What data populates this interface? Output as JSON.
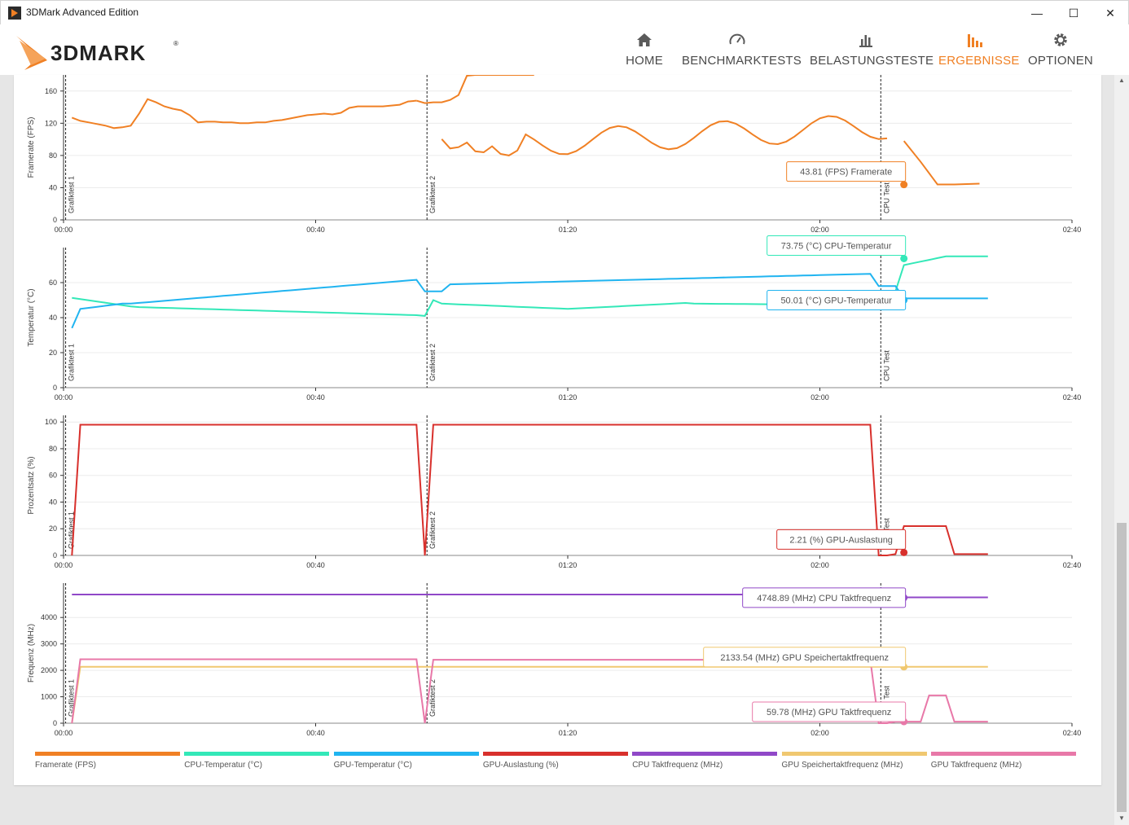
{
  "window": {
    "title": "3DMark Advanced Edition",
    "controls": [
      "—",
      "☐",
      "✕"
    ]
  },
  "brand": {
    "logo_text": "3DMARK",
    "registered": "®"
  },
  "nav": [
    {
      "label": "HOME",
      "icon": "home-icon",
      "active": false
    },
    {
      "label": "BENCHMARKTESTS",
      "icon": "gauge-icon",
      "active": false
    },
    {
      "label": "BELASTUNGSTESTE",
      "icon": "bars-icon",
      "active": false
    },
    {
      "label": "ERGEBNISSE",
      "icon": "results-icon",
      "active": true
    },
    {
      "label": "OPTIONEN",
      "icon": "gear-icon",
      "active": false
    }
  ],
  "colors": {
    "accent": "#f08024",
    "framerate": "#f08024",
    "cpu_temp": "#33e8b8",
    "gpu_temp": "#20b4f0",
    "gpu_load": "#d8302c",
    "cpu_clock": "#9048c8",
    "gpu_mem_clock": "#f0c870",
    "gpu_clock": "#e878a8"
  },
  "markers": {
    "x": [
      0.5,
      86.5,
      194.5
    ],
    "labels": [
      "Grafiktest 1",
      "Grafiktest 2",
      "CPU Test"
    ]
  },
  "x_ticks": [
    "00:00",
    "00:40",
    "01:20",
    "02:00",
    "02:40"
  ],
  "chart_data": [
    {
      "type": "line",
      "id": "framerate",
      "ylabel": "Framerate (FPS)",
      "xlim": [
        0,
        240
      ],
      "ylim": [
        0,
        180
      ],
      "yticks": [
        0,
        40,
        80,
        120,
        160
      ],
      "series": [
        {
          "name": "Framerate (FPS)",
          "color": "#f08024",
          "segments": [
            {
              "x": [
                2,
                4,
                6,
                8,
                10,
                12,
                14,
                16,
                18,
                20,
                22,
                24,
                26,
                28,
                30,
                32,
                34,
                36,
                38,
                40,
                42,
                44,
                46,
                48,
                50,
                52,
                54,
                56,
                58,
                60,
                62,
                64,
                66,
                68,
                70,
                72,
                74,
                76,
                78,
                80,
                82,
                84
              ],
              "y": [
                127,
                123,
                121,
                119,
                117,
                114,
                115,
                117,
                132,
                150,
                146,
                141,
                138,
                136,
                130,
                121,
                122,
                122,
                121,
                121,
                120,
                120,
                121,
                121,
                123,
                124,
                126,
                128,
                130,
                131,
                132,
                131,
                133,
                139,
                141,
                141,
                141,
                141,
                142,
                143,
                147,
                148
              ]
            },
            {
              "x": [
                84,
                86,
                88,
                90,
                92,
                94,
                96,
                98,
                100,
                102,
                104,
                106,
                108,
                110,
                112
              ],
              "y": [
                148,
                145,
                146,
                146,
                149,
                155,
                179,
                180,
                180,
                180,
                180,
                180,
                180,
                180,
                180
              ]
            }
          ]
        }
      ],
      "callouts": [
        {
          "text": "43.81 (FPS) Framerate",
          "value": 43.81,
          "color": "#f08024"
        }
      ]
    },
    {
      "type": "line",
      "id": "temperature",
      "ylabel": "Temperatur (°C)",
      "xlim": [
        0,
        240
      ],
      "ylim": [
        0,
        80
      ],
      "yticks": [
        0,
        20,
        40,
        60
      ],
      "series": [
        {
          "name": "CPU-Temperatur (°C)",
          "color": "#33e8b8"
        },
        {
          "name": "GPU-Temperatur (°C)",
          "color": "#20b4f0"
        }
      ],
      "callouts": [
        {
          "text": "73.75 (°C) CPU-Temperatur",
          "value": 73.75,
          "color": "#33e8b8"
        },
        {
          "text": "50.01 (°C) GPU-Temperatur",
          "value": 50.01,
          "color": "#20b4f0"
        }
      ]
    },
    {
      "type": "line",
      "id": "percentage",
      "ylabel": "Prozentsatz (%)",
      "xlim": [
        0,
        240
      ],
      "ylim": [
        0,
        105
      ],
      "yticks": [
        0,
        20,
        40,
        60,
        80,
        100
      ],
      "series": [
        {
          "name": "GPU-Auslastung (%)",
          "color": "#d8302c"
        }
      ],
      "callouts": [
        {
          "text": "2.21 (%) GPU-Auslastung",
          "value": 2.21,
          "color": "#d8302c"
        }
      ]
    },
    {
      "type": "line",
      "id": "frequency",
      "ylabel": "Frequenz (MHz)",
      "xlim": [
        0,
        240
      ],
      "ylim": [
        0,
        5300
      ],
      "yticks": [
        0,
        1000,
        2000,
        3000,
        4000
      ],
      "series": [
        {
          "name": "CPU Taktfrequenz (MHz)",
          "color": "#9048c8"
        },
        {
          "name": "GPU Speichertaktfrequenz (MHz)",
          "color": "#f0c870"
        },
        {
          "name": "GPU Taktfrequenz (MHz)",
          "color": "#e878a8"
        }
      ],
      "callouts": [
        {
          "text": "4748.89 (MHz) CPU Taktfrequenz",
          "value": 4748.89,
          "color": "#9048c8"
        },
        {
          "text": "2133.54 (MHz) GPU Speichertaktfrequenz",
          "value": 2133.54,
          "color": "#f0c870"
        },
        {
          "text": "59.78 (MHz) GPU Taktfrequenz",
          "value": 59.78,
          "color": "#e878a8"
        }
      ]
    }
  ],
  "legend": [
    {
      "label": "Framerate (FPS)",
      "color": "#f08024"
    },
    {
      "label": "CPU-Temperatur (°C)",
      "color": "#33e8b8"
    },
    {
      "label": "GPU-Temperatur (°C)",
      "color": "#20b4f0"
    },
    {
      "label": "GPU-Auslastung (%)",
      "color": "#d8302c"
    },
    {
      "label": "CPU Taktfrequenz (MHz)",
      "color": "#9048c8"
    },
    {
      "label": "GPU Speichertaktfrequenz (MHz)",
      "color": "#f0c870"
    },
    {
      "label": "GPU Taktfrequenz (MHz)",
      "color": "#e878a8"
    }
  ]
}
